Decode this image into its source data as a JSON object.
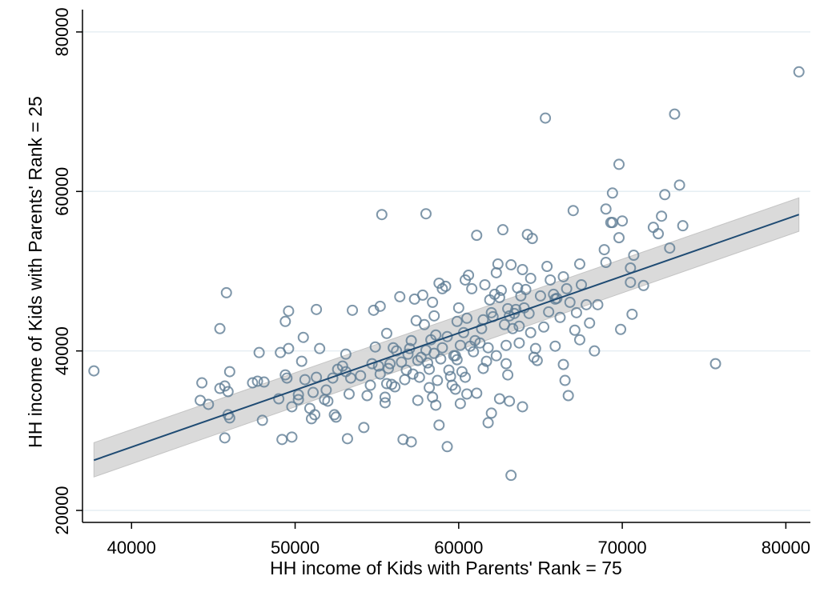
{
  "chart_data": {
    "type": "scatter",
    "xlabel": "HH income of Kids with Parents' Rank = 75",
    "ylabel": "HH income of Kids with Parents' Rank = 25",
    "xlim": [
      37000,
      81500
    ],
    "ylim": [
      18500,
      82000
    ],
    "xticks": [
      40000,
      50000,
      60000,
      70000,
      80000
    ],
    "yticks": [
      20000,
      40000,
      60000,
      80000
    ],
    "grid": "horizontal",
    "colors": {
      "point": "#5f7d95",
      "fit_line": "#1f4b73",
      "band": "#d3d3d3",
      "grid": "#e6eef3"
    },
    "fit": {
      "x": [
        37700,
        80800
      ],
      "y": [
        26300,
        57100
      ]
    },
    "ci_band": {
      "x": [
        37700,
        80800
      ],
      "lower": [
        24200,
        55000
      ],
      "upper": [
        28500,
        59200
      ]
    },
    "points": [
      [
        37700,
        37500
      ],
      [
        44300,
        36000
      ],
      [
        44200,
        33800
      ],
      [
        44700,
        33300
      ],
      [
        45400,
        35300
      ],
      [
        45700,
        35600
      ],
      [
        45900,
        34900
      ],
      [
        46000,
        37400
      ],
      [
        45900,
        32000
      ],
      [
        46000,
        31600
      ],
      [
        45700,
        29100
      ],
      [
        45400,
        42800
      ],
      [
        45800,
        47300
      ],
      [
        47400,
        36000
      ],
      [
        47700,
        36200
      ],
      [
        48100,
        36100
      ],
      [
        47800,
        39800
      ],
      [
        48000,
        31300
      ],
      [
        49000,
        34000
      ],
      [
        49100,
        39800
      ],
      [
        49400,
        37000
      ],
      [
        49400,
        43700
      ],
      [
        49500,
        36600
      ],
      [
        49600,
        45000
      ],
      [
        49600,
        40300
      ],
      [
        49800,
        33000
      ],
      [
        50200,
        34500
      ],
      [
        50200,
        33900
      ],
      [
        49200,
        28900
      ],
      [
        49800,
        29200
      ],
      [
        50400,
        38700
      ],
      [
        50600,
        36400
      ],
      [
        50500,
        41700
      ],
      [
        50900,
        32800
      ],
      [
        51000,
        31500
      ],
      [
        51100,
        34800
      ],
      [
        51300,
        36700
      ],
      [
        51200,
        32000
      ],
      [
        51300,
        45200
      ],
      [
        51500,
        40300
      ],
      [
        51800,
        33900
      ],
      [
        51900,
        35100
      ],
      [
        52000,
        33700
      ],
      [
        52300,
        36600
      ],
      [
        52400,
        32000
      ],
      [
        52500,
        31700
      ],
      [
        52600,
        37700
      ],
      [
        52900,
        38100
      ],
      [
        53100,
        37400
      ],
      [
        53100,
        39600
      ],
      [
        53300,
        34600
      ],
      [
        53400,
        36600
      ],
      [
        53500,
        45100
      ],
      [
        53200,
        29000
      ],
      [
        54000,
        36900
      ],
      [
        54200,
        30400
      ],
      [
        54400,
        34400
      ],
      [
        54600,
        35700
      ],
      [
        54700,
        38400
      ],
      [
        54800,
        45100
      ],
      [
        54900,
        40500
      ],
      [
        55100,
        38100
      ],
      [
        55200,
        45600
      ],
      [
        55200,
        37100
      ],
      [
        55500,
        33500
      ],
      [
        55500,
        34200
      ],
      [
        55600,
        35900
      ],
      [
        55700,
        37800
      ],
      [
        55800,
        38400
      ],
      [
        55300,
        57100
      ],
      [
        55600,
        42200
      ],
      [
        56000,
        40400
      ],
      [
        56200,
        40000
      ],
      [
        56400,
        46800
      ],
      [
        56500,
        38600
      ],
      [
        56600,
        28900
      ],
      [
        56700,
        36400
      ],
      [
        56800,
        37600
      ],
      [
        56900,
        39600
      ],
      [
        57000,
        40300
      ],
      [
        57100,
        41300
      ],
      [
        57200,
        37100
      ],
      [
        57400,
        43800
      ],
      [
        57300,
        46500
      ],
      [
        57500,
        38800
      ],
      [
        57600,
        36700
      ],
      [
        57700,
        39200
      ],
      [
        57800,
        47000
      ],
      [
        57900,
        43300
      ],
      [
        58000,
        40100
      ],
      [
        58100,
        38500
      ],
      [
        58200,
        37700
      ],
      [
        58200,
        35400
      ],
      [
        58300,
        41400
      ],
      [
        58400,
        46100
      ],
      [
        58500,
        39700
      ],
      [
        58600,
        42000
      ],
      [
        58700,
        36300
      ],
      [
        58800,
        48500
      ],
      [
        58900,
        39000
      ],
      [
        59000,
        40400
      ],
      [
        59000,
        47800
      ],
      [
        59200,
        48100
      ],
      [
        59300,
        41800
      ],
      [
        59400,
        37600
      ],
      [
        59500,
        36800
      ],
      [
        59600,
        35700
      ],
      [
        59700,
        39400
      ],
      [
        59800,
        39400
      ],
      [
        59900,
        38900
      ],
      [
        60000,
        45400
      ],
      [
        60100,
        40700
      ],
      [
        60200,
        37400
      ],
      [
        60300,
        42300
      ],
      [
        60400,
        48900
      ],
      [
        60500,
        44100
      ],
      [
        60600,
        49500
      ],
      [
        60700,
        40600
      ],
      [
        60800,
        47800
      ],
      [
        60900,
        39900
      ],
      [
        61000,
        41300
      ],
      [
        61100,
        54500
      ],
      [
        61300,
        41000
      ],
      [
        61400,
        42800
      ],
      [
        61500,
        43900
      ],
      [
        61600,
        48300
      ],
      [
        61700,
        38700
      ],
      [
        61800,
        40400
      ],
      [
        61900,
        46400
      ],
      [
        62000,
        44800
      ],
      [
        62100,
        44300
      ],
      [
        62200,
        47100
      ],
      [
        62300,
        49800
      ],
      [
        62400,
        50900
      ],
      [
        62500,
        46700
      ],
      [
        62600,
        47600
      ],
      [
        62700,
        55200
      ],
      [
        62800,
        43300
      ],
      [
        62900,
        38400
      ],
      [
        63000,
        45300
      ],
      [
        63100,
        44400
      ],
      [
        63200,
        50800
      ],
      [
        63300,
        42800
      ],
      [
        63400,
        44700
      ],
      [
        63500,
        45200
      ],
      [
        63600,
        47900
      ],
      [
        63700,
        43100
      ],
      [
        63800,
        46900
      ],
      [
        63900,
        50200
      ],
      [
        64000,
        45400
      ],
      [
        64100,
        47700
      ],
      [
        64200,
        54600
      ],
      [
        64300,
        44700
      ],
      [
        64400,
        49100
      ],
      [
        64500,
        54100
      ],
      [
        64600,
        39200
      ],
      [
        64700,
        40300
      ],
      [
        64800,
        38800
      ],
      [
        65000,
        46900
      ],
      [
        65200,
        43000
      ],
      [
        65300,
        69200
      ],
      [
        65400,
        50600
      ],
      [
        65600,
        48900
      ],
      [
        65800,
        47100
      ],
      [
        65900,
        46500
      ],
      [
        66000,
        46600
      ],
      [
        66200,
        44200
      ],
      [
        66400,
        49300
      ],
      [
        66600,
        47800
      ],
      [
        66800,
        46100
      ],
      [
        67000,
        57600
      ],
      [
        67100,
        42600
      ],
      [
        67200,
        44800
      ],
      [
        67400,
        50900
      ],
      [
        67500,
        48300
      ],
      [
        67800,
        45800
      ],
      [
        68000,
        43500
      ],
      [
        68300,
        40000
      ],
      [
        68500,
        45800
      ],
      [
        68900,
        52700
      ],
      [
        69000,
        57800
      ],
      [
        69000,
        51100
      ],
      [
        69300,
        56100
      ],
      [
        69400,
        59800
      ],
      [
        69400,
        56100
      ],
      [
        69800,
        63400
      ],
      [
        69800,
        54200
      ],
      [
        69900,
        42700
      ],
      [
        70000,
        56300
      ],
      [
        70500,
        50400
      ],
      [
        70500,
        48600
      ],
      [
        70600,
        44600
      ],
      [
        70700,
        52000
      ],
      [
        71300,
        48200
      ],
      [
        71900,
        55500
      ],
      [
        72200,
        54700
      ],
      [
        72400,
        56900
      ],
      [
        72600,
        59600
      ],
      [
        72900,
        52900
      ],
      [
        73200,
        69700
      ],
      [
        73500,
        60800
      ],
      [
        73700,
        55700
      ],
      [
        75700,
        38400
      ],
      [
        80800,
        75000
      ],
      [
        58000,
        57200
      ],
      [
        62000,
        32200
      ],
      [
        62500,
        34000
      ],
      [
        63100,
        33700
      ],
      [
        63200,
        24400
      ],
      [
        61800,
        31000
      ],
      [
        59300,
        28000
      ],
      [
        58800,
        30700
      ],
      [
        57100,
        28600
      ],
      [
        55900,
        35800
      ],
      [
        58400,
        34200
      ],
      [
        60100,
        33400
      ],
      [
        60500,
        34600
      ],
      [
        61100,
        34700
      ],
      [
        63900,
        33000
      ],
      [
        66500,
        36300
      ],
      [
        66700,
        34400
      ],
      [
        66400,
        38300
      ],
      [
        63000,
        37000
      ],
      [
        59800,
        35200
      ],
      [
        57500,
        33800
      ],
      [
        58600,
        33200
      ],
      [
        56100,
        35500
      ],
      [
        64400,
        42300
      ],
      [
        65900,
        40600
      ],
      [
        63700,
        41000
      ],
      [
        62300,
        39400
      ],
      [
        60400,
        36700
      ],
      [
        65500,
        44900
      ],
      [
        67400,
        41400
      ],
      [
        62900,
        40700
      ],
      [
        59900,
        43700
      ],
      [
        61500,
        37800
      ],
      [
        58500,
        44400
      ]
    ]
  }
}
